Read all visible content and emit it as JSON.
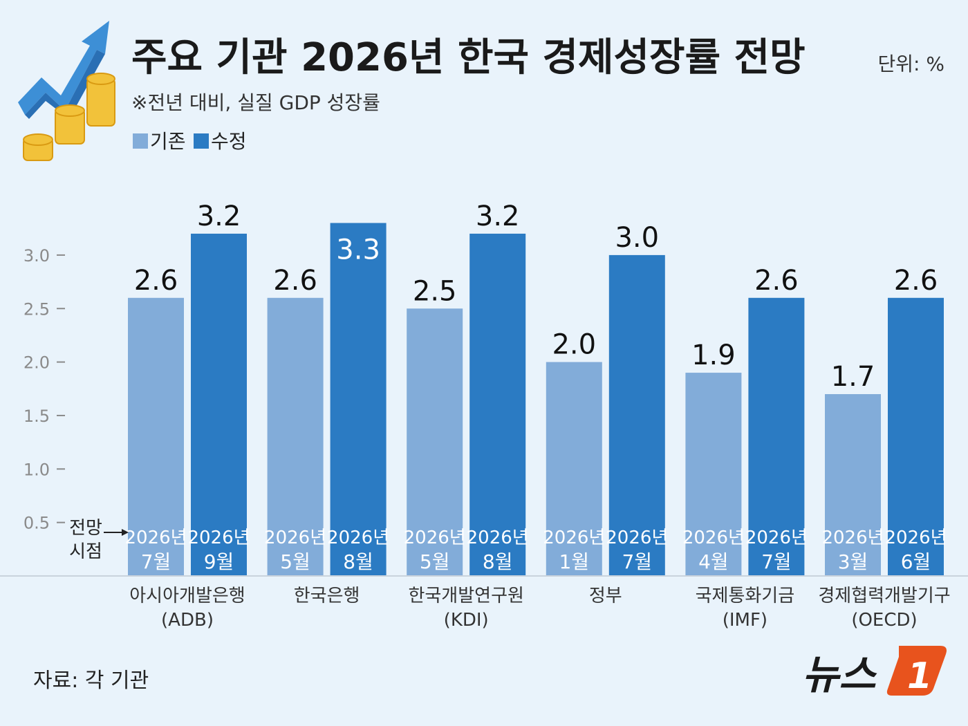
{
  "title": "주요 기관 2026년 한국 경제성장률 전망",
  "unit": "단위: %",
  "subtitle": "※전년 대비, 실질 GDP 성장률",
  "legend": [
    {
      "label": "기존",
      "color": "#82acd9"
    },
    {
      "label": "수정",
      "color": "#2b7bc3"
    }
  ],
  "timing_label": [
    "전망",
    "시점"
  ],
  "source": "자료: 각 기관",
  "logo_text": "뉴스1",
  "colors": {
    "background": "#e9f3fb",
    "previous": "#82acd9",
    "revised": "#2b7bc3",
    "logo_accent": "#e8531d"
  },
  "chart_data": {
    "type": "bar",
    "ylim": [
      0,
      3.4
    ],
    "yticks": [
      "0.5",
      "1.0",
      "1.5",
      "2.0",
      "2.5",
      "3.0"
    ],
    "categories": [
      {
        "name": "아시아개발은행",
        "abbr": "(ADB)"
      },
      {
        "name": "한국은행",
        "abbr": ""
      },
      {
        "name": "한국개발연구원",
        "abbr": "(KDI)"
      },
      {
        "name": "정부",
        "abbr": ""
      },
      {
        "name": "국제통화기금",
        "abbr": "(IMF)"
      },
      {
        "name": "경제협력개발기구",
        "abbr": "(OECD)"
      }
    ],
    "series": [
      {
        "name": "기존",
        "values": [
          2.6,
          2.6,
          2.5,
          2.0,
          1.9,
          1.7
        ],
        "labels": [
          "2.6",
          "2.6",
          "2.5",
          "2.0",
          "1.9",
          "1.7"
        ],
        "dates": [
          [
            "2026년",
            "7월"
          ],
          [
            "2026년",
            "5월"
          ],
          [
            "2026년",
            "5월"
          ],
          [
            "2026년",
            "1월"
          ],
          [
            "2026년",
            "4월"
          ],
          [
            "2026년",
            "3월"
          ]
        ]
      },
      {
        "name": "수정",
        "values": [
          3.2,
          3.3,
          3.2,
          3.0,
          2.6,
          2.6
        ],
        "labels": [
          "3.2",
          "3.3",
          "3.2",
          "3.0",
          "2.6",
          "2.6"
        ],
        "dates": [
          [
            "2026년",
            "9월"
          ],
          [
            "2026년",
            "8월"
          ],
          [
            "2026년",
            "8월"
          ],
          [
            "2026년",
            "7월"
          ],
          [
            "2026년",
            "7월"
          ],
          [
            "2026년",
            "6월"
          ]
        ]
      }
    ]
  }
}
